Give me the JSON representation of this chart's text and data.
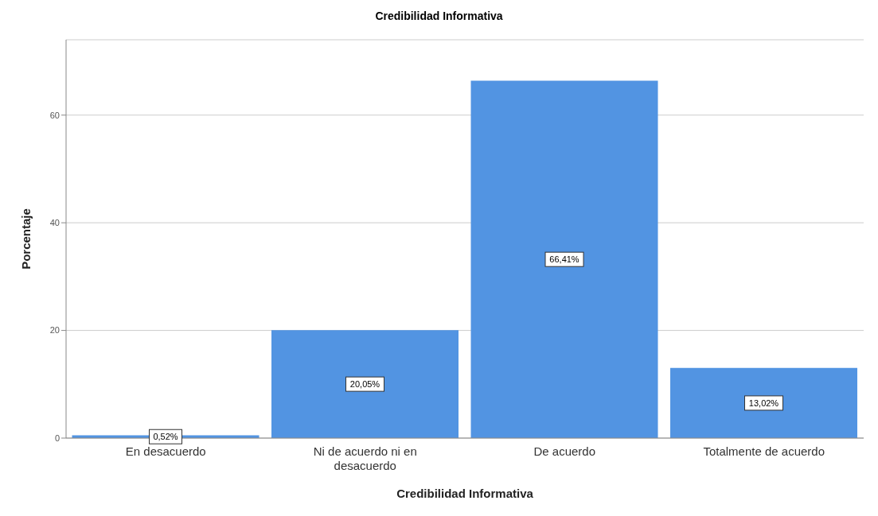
{
  "chart_data": {
    "type": "bar",
    "title": "Credibilidad Informativa",
    "xlabel": "Credibilidad Informativa",
    "ylabel": "Porcentaje",
    "categories": [
      "En desacuerdo",
      "Ni de acuerdo ni en desacuerdo",
      "De acuerdo",
      "Totalmente de acuerdo"
    ],
    "values": [
      0.52,
      20.05,
      66.41,
      13.02
    ],
    "value_labels": [
      "0,52%",
      "20,05%",
      "66,41%",
      "13,02%"
    ],
    "color": "#5294e2",
    "ylim": [
      0,
      74
    ],
    "yticks": [
      0,
      20,
      40,
      60
    ],
    "grid": "y"
  }
}
